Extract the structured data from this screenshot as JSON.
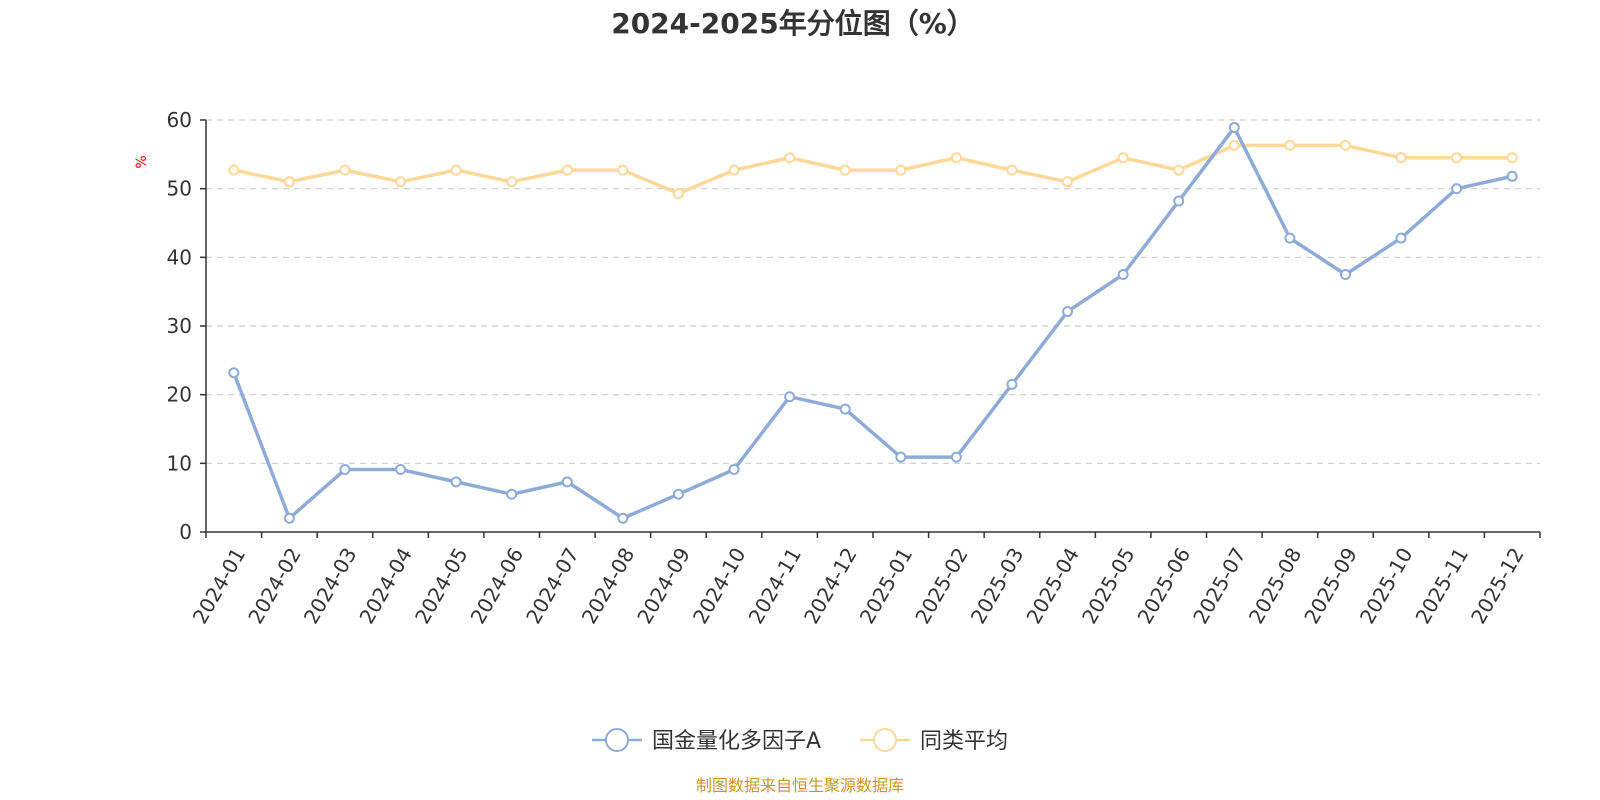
{
  "chart_data": {
    "type": "line",
    "title": "2024-2025年分位图（%）",
    "ylabel": "%",
    "xlabel": "",
    "ylim": [
      0,
      60
    ],
    "yticks": [
      0,
      10,
      20,
      30,
      40,
      50,
      60
    ],
    "grid": true,
    "legend": "bottom-center",
    "categories": [
      "2024-01",
      "2024-02",
      "2024-03",
      "2024-04",
      "2024-05",
      "2024-06",
      "2024-07",
      "2024-08",
      "2024-09",
      "2024-10",
      "2024-11",
      "2024-12",
      "2025-01",
      "2025-02",
      "2025-03",
      "2025-04",
      "2025-05",
      "2025-06",
      "2025-07",
      "2025-08",
      "2025-09",
      "2025-10",
      "2025-11",
      "2025-12"
    ],
    "series": [
      {
        "name": "国金量化多因子A",
        "color": "#8eabd8",
        "values": [
          23.2,
          2.0,
          9.1,
          9.1,
          7.3,
          5.5,
          7.3,
          2.0,
          5.5,
          9.1,
          19.7,
          17.9,
          10.9,
          10.9,
          21.5,
          32.1,
          37.5,
          48.2,
          58.9,
          42.8,
          37.5,
          42.8,
          50.0,
          51.8
        ]
      },
      {
        "name": "同类平均",
        "color": "#fdd89a",
        "values": [
          52.7,
          51.0,
          52.7,
          51.0,
          52.7,
          51.0,
          52.7,
          52.7,
          49.3,
          52.7,
          54.5,
          52.7,
          52.7,
          54.5,
          52.7,
          51.0,
          54.5,
          52.7,
          56.3,
          56.3,
          56.3,
          54.5,
          54.5,
          54.5
        ]
      }
    ]
  },
  "colors": {
    "axis": "#333333",
    "grid": "#cccccc",
    "unit_label": "#ff0000",
    "source_text": "#c8952a"
  },
  "source": "制图数据来自恒生聚源数据库"
}
